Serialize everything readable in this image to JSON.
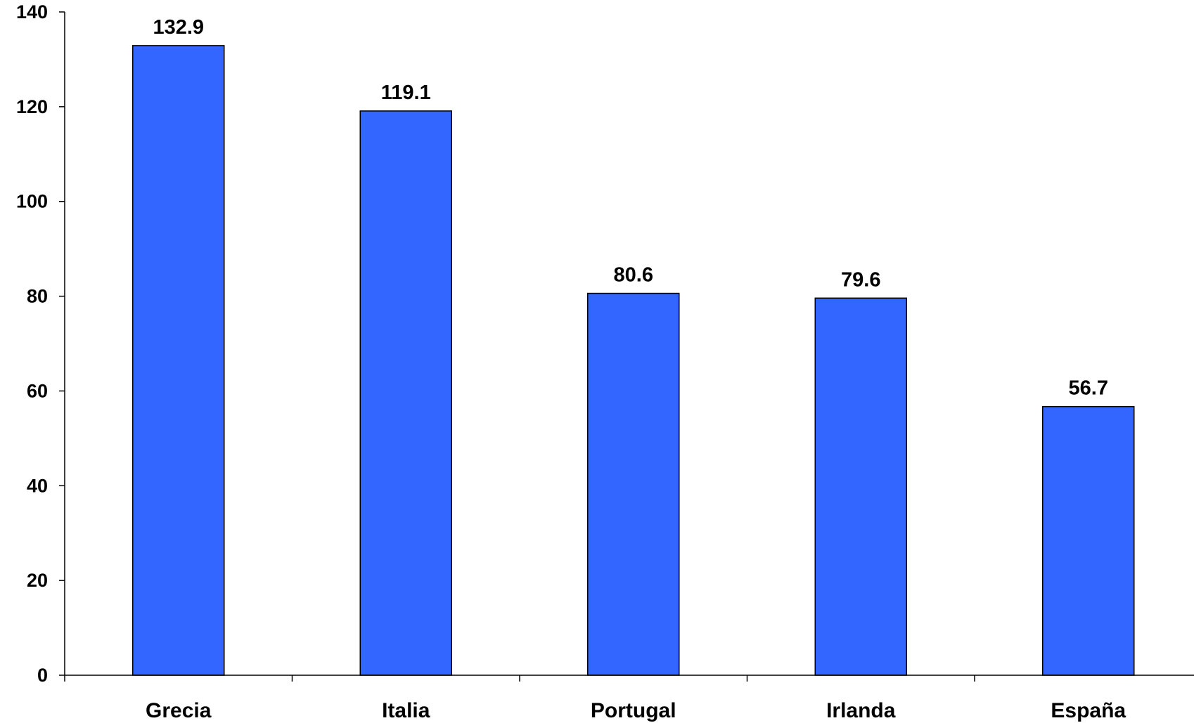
{
  "chart_data": {
    "type": "bar",
    "title": "",
    "xlabel": "",
    "ylabel": "",
    "categories": [
      "Grecia",
      "Italia",
      "Portugal",
      "Irlanda",
      "España"
    ],
    "values": [
      132.9,
      119.1,
      80.6,
      79.6,
      56.7
    ],
    "data_labels": [
      "132.9",
      "119.1",
      "80.6",
      "79.6",
      "56.7"
    ],
    "ylim": [
      0,
      140
    ],
    "yticks": [
      0,
      20,
      40,
      60,
      80,
      100,
      120,
      140
    ],
    "ytick_labels": [
      "0",
      "20",
      "40",
      "60",
      "80",
      "100",
      "120",
      "140"
    ],
    "grid": false,
    "legend": "none",
    "colors": {
      "bar_fill": "#3366ff",
      "bar_stroke": "#000000",
      "axis": "#000000",
      "background": "#ffffff"
    }
  }
}
